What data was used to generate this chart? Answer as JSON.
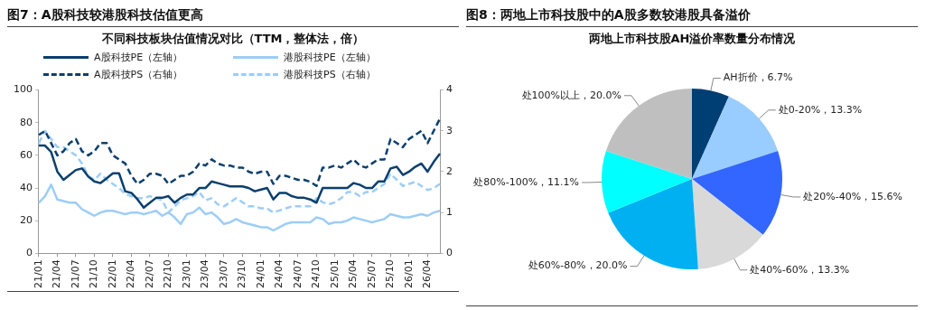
{
  "chart_data": [
    {
      "type": "line",
      "title": "图7：A股科技较港股科技估值更高",
      "subtitle": "不同科技板块估值情况对比（TTM，整体法，倍）",
      "categories": [
        "21/01",
        null,
        null,
        "21/04",
        null,
        null,
        "21/07",
        null,
        null,
        "21/10",
        null,
        null,
        "22/01",
        null,
        null,
        "22/04",
        null,
        null,
        "22/07",
        null,
        null,
        "22/10",
        null,
        null,
        "23/01",
        null,
        null,
        "23/04",
        null,
        null,
        "23/07",
        null,
        null,
        "23/10",
        null,
        null,
        "24/01",
        null,
        null,
        "24/04",
        null,
        null,
        "24/07",
        null,
        null,
        "24/10",
        null,
        null,
        "25/01",
        null,
        null,
        "25/04",
        null,
        null,
        "25/07",
        null,
        null,
        "25/10",
        null,
        null,
        "26/01",
        null,
        null,
        "26/04",
        null,
        null
      ],
      "series": [
        {
          "name": "A股科技PE（左轴）",
          "color": "#0b3f6e",
          "line_style": "solid",
          "values": [
            66,
            66,
            62,
            50,
            45,
            48,
            51,
            52,
            47,
            44,
            43,
            46,
            49,
            49,
            38,
            37,
            33,
            28,
            31,
            34,
            34,
            35,
            31,
            34,
            36,
            36,
            40,
            40,
            44,
            43,
            42,
            41,
            41,
            41,
            40,
            38,
            39,
            40,
            33,
            37,
            37,
            35,
            34,
            34,
            33,
            31,
            40,
            40,
            40,
            40,
            40,
            43,
            42,
            40,
            40,
            44,
            44,
            52,
            53,
            48,
            50,
            53,
            55,
            50,
            56,
            61
          ]
        },
        {
          "name": "港股科技PE（左轴）",
          "color": "#9dcdf7",
          "line_style": "solid",
          "values": [
            31,
            35,
            42,
            33,
            32,
            31,
            31,
            27,
            25,
            23,
            25,
            26,
            26,
            25,
            24,
            25,
            25,
            24,
            25,
            26,
            23,
            25,
            22,
            18,
            24,
            25,
            28,
            24,
            25,
            22,
            18,
            19,
            21,
            19,
            18,
            17,
            16,
            16,
            14,
            16,
            18,
            19,
            19,
            19,
            19,
            22,
            21,
            18,
            19,
            19,
            20,
            22,
            21,
            20,
            19,
            20,
            21,
            24,
            23,
            22,
            22,
            23,
            24,
            23,
            25,
            26
          ]
        },
        {
          "name": "A股科技PS（右轴）",
          "color": "#0b3f6e",
          "line_style": "dashed",
          "axis": "y2",
          "values": [
            2.9,
            3.0,
            2.7,
            2.4,
            2.5,
            2.7,
            2.8,
            2.5,
            2.4,
            2.5,
            2.7,
            2.7,
            2.4,
            2.3,
            2.2,
            1.9,
            1.7,
            1.8,
            1.95,
            1.95,
            1.9,
            1.7,
            1.8,
            1.9,
            1.9,
            2.0,
            2.2,
            2.15,
            2.3,
            2.2,
            2.15,
            2.15,
            2.1,
            2.1,
            2.0,
            1.95,
            2.0,
            2.0,
            1.7,
            1.9,
            1.9,
            1.85,
            1.8,
            1.8,
            1.75,
            1.65,
            2.1,
            2.1,
            2.15,
            2.1,
            2.2,
            2.3,
            2.15,
            2.1,
            2.2,
            2.3,
            2.3,
            2.8,
            2.7,
            2.6,
            2.8,
            2.9,
            3.0,
            2.7,
            3.0,
            3.3
          ]
        },
        {
          "name": "港股科技PS（右轴）",
          "color": "#9dcdf7",
          "line_style": "dashed",
          "axis": "y2",
          "values": [
            2.7,
            3.0,
            2.8,
            2.6,
            2.6,
            2.5,
            2.4,
            2.2,
            1.9,
            1.8,
            1.95,
            1.8,
            1.7,
            1.6,
            1.45,
            1.4,
            1.35,
            1.35,
            1.4,
            1.35,
            1.3,
            1.0,
            1.15,
            1.3,
            1.35,
            1.4,
            1.5,
            1.3,
            1.35,
            1.2,
            1.15,
            1.25,
            1.35,
            1.25,
            1.15,
            1.15,
            1.1,
            1.1,
            1.0,
            1.05,
            1.1,
            1.15,
            1.15,
            1.15,
            1.15,
            1.35,
            1.25,
            1.2,
            1.25,
            1.35,
            1.5,
            1.5,
            1.4,
            1.5,
            1.5,
            1.6,
            1.7,
            1.95,
            1.8,
            1.65,
            1.7,
            1.75,
            1.65,
            1.55,
            1.6,
            1.7
          ]
        }
      ],
      "ylim": [
        0,
        100
      ],
      "yticks": [
        0,
        20,
        40,
        60,
        80,
        100
      ],
      "y2lim": [
        0,
        4
      ],
      "y2ticks": [
        0,
        1,
        2,
        3,
        4
      ],
      "grid": false,
      "legend": "top",
      "marker": "none"
    },
    {
      "type": "pie",
      "title": "图8：两地上市科技股中的A股多数较港股具备溢价",
      "subtitle": "两地上市科技股AH溢价率数量分布情况",
      "categories": [
        "AH折价",
        "处0-20%",
        "处20%-40%",
        "处40%-60%",
        "处60%-80%",
        "处80%-100%",
        "处100%以上"
      ],
      "values": [
        6.7,
        13.3,
        15.6,
        13.3,
        20.0,
        11.1,
        20.0
      ],
      "value_labels": [
        "6.7%",
        "13.3%",
        "15.6%",
        "13.3%",
        "20.0%",
        "11.1%",
        "20.0%"
      ],
      "colors": [
        "#003f73",
        "#99ccff",
        "#3366ff",
        "#d9d9d9",
        "#00b0f0",
        "#00ffff",
        "#bfbfbf"
      ],
      "legend": false
    }
  ]
}
